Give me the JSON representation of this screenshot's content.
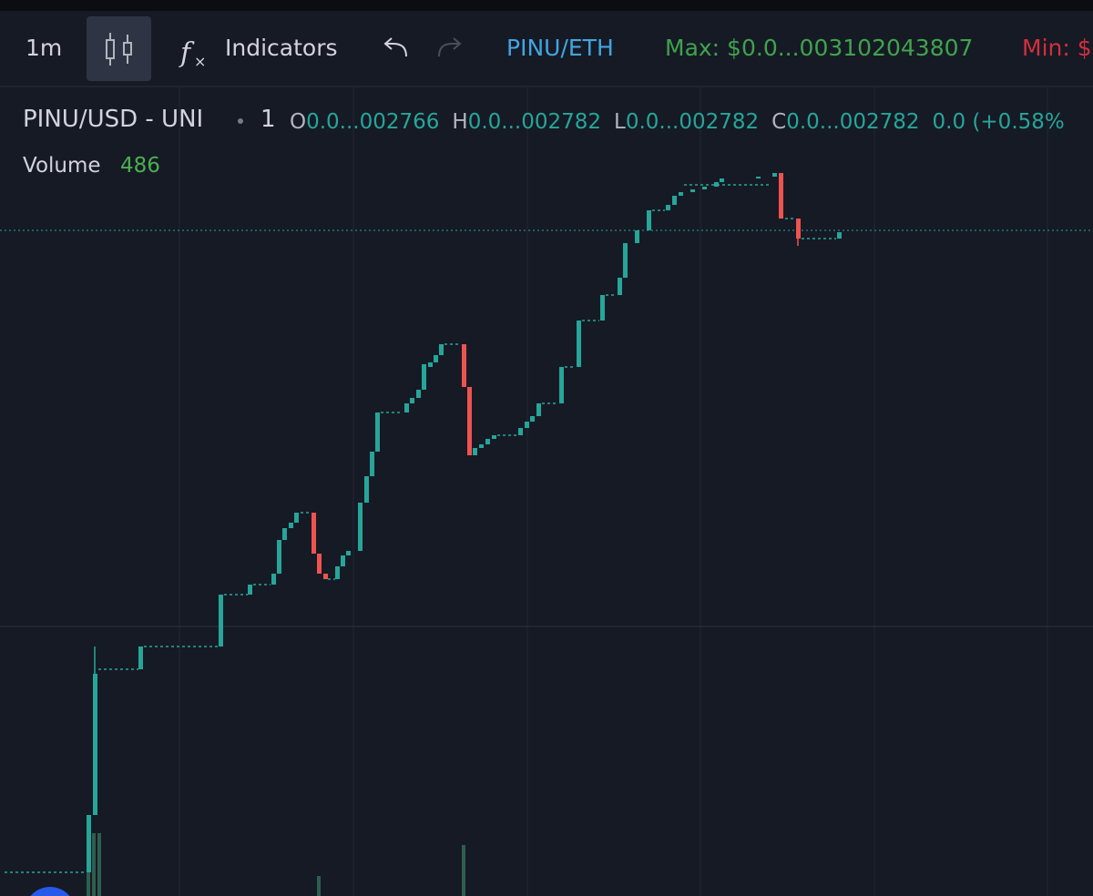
{
  "toolbar": {
    "interval": "1m",
    "indicators": "Indicators",
    "pair": "PINU/ETH",
    "max": "Max: $0.0...003102043807",
    "min": "Min: $"
  },
  "legend": {
    "symbol": "PINU/USD - UNI",
    "interval": "1",
    "ohlc": [
      {
        "label": "O",
        "value": "0.0...002766"
      },
      {
        "label": "H",
        "value": "0.0...002782"
      },
      {
        "label": "L",
        "value": "0.0...002782"
      },
      {
        "label": "C",
        "value": "0.0...002782"
      }
    ],
    "change": "0.0 (+0.58%"
  },
  "volume": {
    "label": "Volume",
    "value": "486"
  }
}
